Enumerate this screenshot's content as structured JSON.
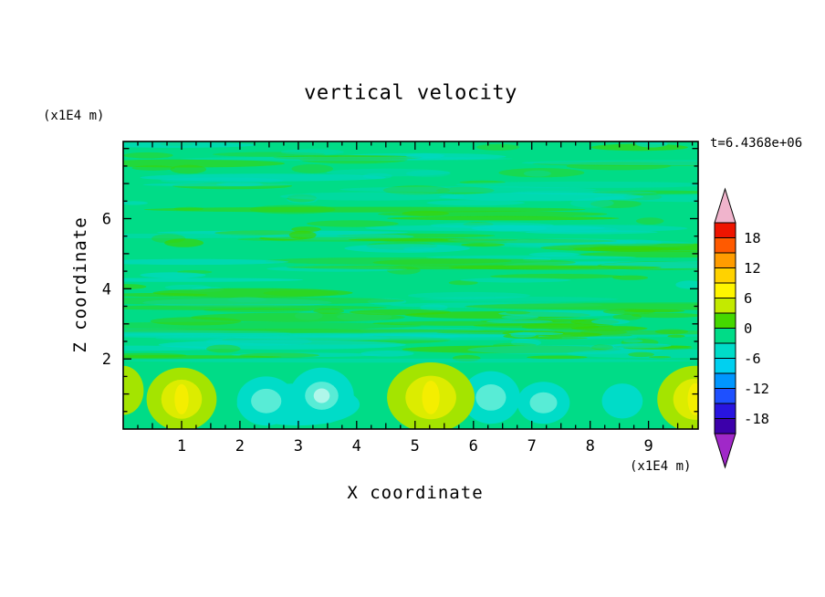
{
  "chart_data": {
    "type": "heatmap",
    "title": "vertical velocity",
    "annotation": "t=6.4368e+06",
    "xlabel": "X coordinate",
    "ylabel": "Z coordinate",
    "x_unit_label": "(x1E4 m)",
    "z_unit_label": "(x1E4 m)",
    "x_range": [
      0,
      9.85
    ],
    "z_range": [
      0,
      8.2
    ],
    "x_major_ticks": [
      1,
      2,
      3,
      4,
      5,
      6,
      7,
      8,
      9
    ],
    "x_minor_tick_step": 0.25,
    "z_major_ticks": [
      2,
      4,
      6
    ],
    "z_minor_tick_step": 0.5,
    "grid": false,
    "colorbar": {
      "position": "right",
      "tick_labels": [
        "18",
        "12",
        "6",
        "0",
        "-6",
        "-12",
        "-18"
      ],
      "level_step": 3,
      "levels_top_to_bottom": [
        21,
        18,
        15,
        12,
        9,
        6,
        3,
        0,
        -3,
        -6,
        -9,
        -12,
        -15,
        -18,
        -21
      ],
      "segment_colors_top_to_bottom": [
        "#ee1400",
        "#ff5a00",
        "#ff9c00",
        "#ffd200",
        "#fff500",
        "#c3ea00",
        "#45d800",
        "#00dc87",
        "#00dcc8",
        "#00d0f0",
        "#0096ff",
        "#1e50ff",
        "#2814e0",
        "#3c00aa"
      ],
      "over_color": "#f0b4cc",
      "under_color": "#a028c8"
    },
    "field": {
      "background_color": "#00dc87",
      "background_value_band": [
        -3,
        3
      ],
      "streak_colors": [
        "#3cd400",
        "#00d8c4"
      ],
      "streak_zone_z": [
        1.95,
        8.2
      ],
      "streak_count": 150,
      "seed": 20,
      "interface_line": {
        "z": 1.95,
        "color": "#00d8c4",
        "opacity": 0.45
      },
      "updraft_layer_colors": [
        "#a4e400",
        "#dcec00",
        "#f4ee00"
      ],
      "downdraft_layer_colors": [
        "#00dcc8",
        "#58ecd6",
        "#b0f6ea"
      ],
      "updrafts": [
        {
          "x": 0.0,
          "z": 1.1,
          "rx": 0.35,
          "rz": 0.7,
          "peak": 4
        },
        {
          "x": 1.0,
          "z": 0.85,
          "rx": 0.6,
          "rz": 0.9,
          "peak": 8
        },
        {
          "x": 5.27,
          "z": 0.9,
          "rx": 0.75,
          "rz": 1.0,
          "peak": 9
        },
        {
          "x": 9.8,
          "z": 0.85,
          "rx": 0.65,
          "rz": 0.95,
          "peak": 8
        }
      ],
      "downdrafts": [
        {
          "x": 3.0,
          "z": 0.7,
          "rx": 1.05,
          "rz": 0.6,
          "peak": -4
        },
        {
          "x": 2.45,
          "z": 0.8,
          "rx": 0.5,
          "rz": 0.7,
          "peak": -5
        },
        {
          "x": 3.4,
          "z": 0.95,
          "rx": 0.55,
          "rz": 0.8,
          "peak": -7
        },
        {
          "x": 6.3,
          "z": 0.9,
          "rx": 0.5,
          "rz": 0.75,
          "peak": -6
        },
        {
          "x": 7.2,
          "z": 0.75,
          "rx": 0.45,
          "rz": 0.6,
          "peak": -5
        },
        {
          "x": 8.55,
          "z": 0.8,
          "rx": 0.35,
          "rz": 0.5,
          "peak": -4
        }
      ]
    }
  }
}
